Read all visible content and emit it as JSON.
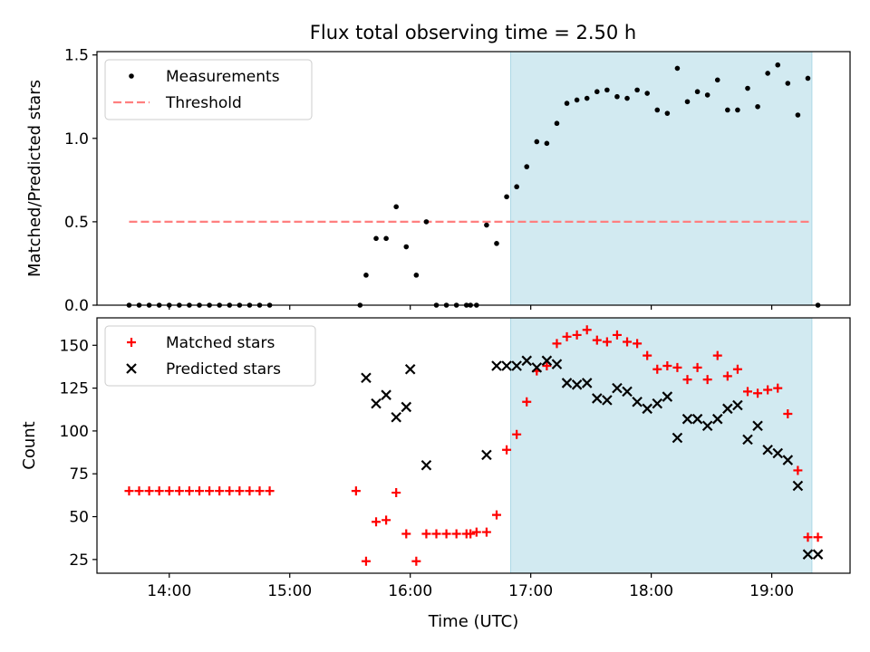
{
  "title": "Flux total observing time = 2.50 h",
  "chart_data": [
    {
      "type": "scatter",
      "panel": "top",
      "ylabel": "Matched/Predicted stars",
      "ylim": [
        0,
        1.52
      ],
      "yticks": [
        0.0,
        0.5,
        1.0,
        1.5
      ],
      "ytick_labels": [
        "0.0",
        "0.5",
        "1.0",
        "1.5"
      ],
      "xlim_hours": [
        13.4,
        19.65
      ],
      "grid": false,
      "legend_position": "top-left",
      "legend": [
        {
          "label": "Measurements",
          "marker": "dot",
          "color": "#000000"
        },
        {
          "label": "Threshold",
          "marker": "dashed-line",
          "color": "#ff7f7f"
        }
      ],
      "threshold": {
        "y": 0.5,
        "x_start": "13:40",
        "x_end": "19:20",
        "color": "#ff7f7f"
      },
      "shaded_region": {
        "x_start": "16:50",
        "x_end": "19:20",
        "color": "#add8e6"
      },
      "series": [
        {
          "name": "Measurements",
          "x": [
            "13:40",
            "13:45",
            "13:50",
            "13:55",
            "14:00",
            "14:05",
            "14:10",
            "14:15",
            "14:20",
            "14:25",
            "14:30",
            "14:35",
            "14:40",
            "14:45",
            "14:50",
            "15:35",
            "15:38",
            "15:43",
            "15:48",
            "15:53",
            "15:58",
            "16:03",
            "16:08",
            "16:13",
            "16:18",
            "16:23",
            "16:28",
            "16:30",
            "16:33",
            "16:38",
            "16:43",
            "16:48",
            "16:53",
            "16:58",
            "17:03",
            "17:08",
            "17:13",
            "17:18",
            "17:23",
            "17:28",
            "17:33",
            "17:38",
            "17:43",
            "17:48",
            "17:53",
            "17:58",
            "18:03",
            "18:08",
            "18:13",
            "18:18",
            "18:23",
            "18:28",
            "18:33",
            "18:38",
            "18:43",
            "18:48",
            "18:53",
            "18:58",
            "19:03",
            "19:08",
            "19:13",
            "19:18",
            "19:23"
          ],
          "y": [
            0,
            0,
            0,
            0,
            0,
            0,
            0,
            0,
            0,
            0,
            0,
            0,
            0,
            0,
            0,
            0,
            0.18,
            0.4,
            0.4,
            0.59,
            0.35,
            0.18,
            0.5,
            0,
            0,
            0,
            0,
            0,
            0,
            0.48,
            0.37,
            0.65,
            0.71,
            0.83,
            0.98,
            0.97,
            1.09,
            1.21,
            1.23,
            1.24,
            1.28,
            1.29,
            1.25,
            1.24,
            1.29,
            1.27,
            1.17,
            1.15,
            1.42,
            1.22,
            1.28,
            1.26,
            1.35,
            1.17,
            1.17,
            1.3,
            1.19,
            1.39,
            1.44,
            1.33,
            1.14,
            1.36,
            0.0
          ]
        }
      ]
    },
    {
      "type": "scatter",
      "panel": "bottom",
      "xlabel": "Time (UTC)",
      "ylabel": "Count",
      "ylim": [
        17,
        166
      ],
      "yticks": [
        25,
        50,
        75,
        100,
        125,
        150
      ],
      "ytick_labels": [
        "25",
        "50",
        "75",
        "100",
        "125",
        "150"
      ],
      "xlim_hours": [
        13.4,
        19.65
      ],
      "xticks": [
        "14:00",
        "15:00",
        "16:00",
        "17:00",
        "18:00",
        "19:00"
      ],
      "grid": false,
      "legend_position": "top-left",
      "legend": [
        {
          "label": "Matched stars",
          "marker": "plus",
          "color": "#ff0000"
        },
        {
          "label": "Predicted stars",
          "marker": "x",
          "color": "#000000"
        }
      ],
      "shaded_region": {
        "x_start": "16:50",
        "x_end": "19:20",
        "color": "#add8e6"
      },
      "series": [
        {
          "name": "Matched stars",
          "x": [
            "13:40",
            "13:45",
            "13:50",
            "13:55",
            "14:00",
            "14:05",
            "14:10",
            "14:15",
            "14:20",
            "14:25",
            "14:30",
            "14:35",
            "14:40",
            "14:45",
            "14:50",
            "15:33",
            "15:38",
            "15:43",
            "15:48",
            "15:53",
            "15:58",
            "16:03",
            "16:08",
            "16:13",
            "16:18",
            "16:23",
            "16:28",
            "16:30",
            "16:33",
            "16:38",
            "16:43",
            "16:48",
            "16:53",
            "16:58",
            "17:03",
            "17:08",
            "17:13",
            "17:18",
            "17:23",
            "17:28",
            "17:33",
            "17:38",
            "17:43",
            "17:48",
            "17:53",
            "17:58",
            "18:03",
            "18:08",
            "18:13",
            "18:18",
            "18:23",
            "18:28",
            "18:33",
            "18:38",
            "18:43",
            "18:48",
            "18:53",
            "18:58",
            "19:03",
            "19:08",
            "19:13",
            "19:18",
            "19:23"
          ],
          "y": [
            65,
            65,
            65,
            65,
            65,
            65,
            65,
            65,
            65,
            65,
            65,
            65,
            65,
            65,
            65,
            65,
            24,
            47,
            48,
            64,
            40,
            24,
            40,
            40,
            40,
            40,
            40,
            40,
            41,
            41,
            51,
            89,
            98,
            117,
            135,
            138,
            151,
            155,
            156,
            159,
            153,
            152,
            156,
            152,
            151,
            144,
            136,
            138,
            137,
            130,
            137,
            130,
            144,
            132,
            136,
            123,
            122,
            124,
            125,
            110,
            77,
            38,
            38
          ]
        },
        {
          "name": "Predicted stars",
          "x": [
            "15:38",
            "15:43",
            "15:48",
            "15:53",
            "15:58",
            "16:00",
            "16:08",
            "16:38",
            "16:43",
            "16:48",
            "16:53",
            "16:58",
            "17:03",
            "17:08",
            "17:13",
            "17:18",
            "17:23",
            "17:28",
            "17:33",
            "17:38",
            "17:43",
            "17:48",
            "17:53",
            "17:58",
            "18:03",
            "18:08",
            "18:13",
            "18:18",
            "18:23",
            "18:28",
            "18:33",
            "18:38",
            "18:43",
            "18:48",
            "18:53",
            "18:58",
            "19:03",
            "19:08",
            "19:13",
            "19:18",
            "19:23"
          ],
          "y": [
            131,
            116,
            121,
            108,
            114,
            136,
            80,
            86,
            138,
            138,
            138,
            141,
            137,
            141,
            139,
            128,
            127,
            128,
            119,
            118,
            125,
            123,
            117,
            113,
            116,
            120,
            96,
            107,
            107,
            103,
            107,
            113,
            115,
            95,
            103,
            89,
            87,
            83,
            68,
            28,
            28
          ]
        }
      ]
    }
  ]
}
